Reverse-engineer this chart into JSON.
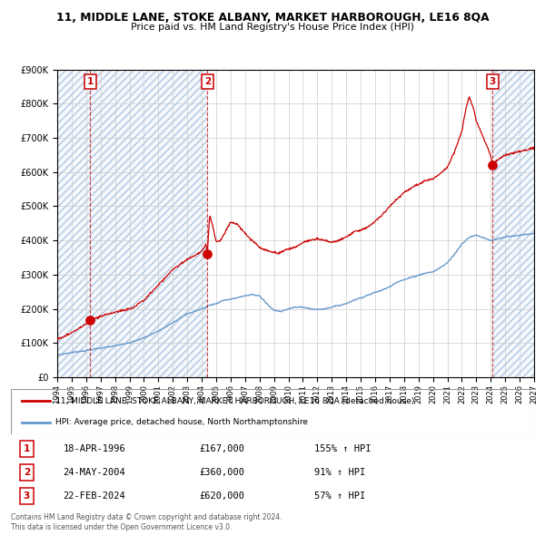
{
  "title1": "11, MIDDLE LANE, STOKE ALBANY, MARKET HARBOROUGH, LE16 8QA",
  "title2": "Price paid vs. HM Land Registry's House Price Index (HPI)",
  "legend_line1": "11, MIDDLE LANE, STOKE ALBANY, MARKET HARBOROUGH, LE16 8QA (detached house)",
  "legend_line2": "HPI: Average price, detached house, North Northamptonshire",
  "sale1_date": "18-APR-1996",
  "sale1_price": 167000,
  "sale1_label": "155% ↑ HPI",
  "sale1_x": 1996.29,
  "sale2_date": "24-MAY-2004",
  "sale2_price": 360000,
  "sale2_label": "91% ↑ HPI",
  "sale2_x": 2004.39,
  "sale3_date": "22-FEB-2024",
  "sale3_price": 620000,
  "sale3_label": "57% ↑ HPI",
  "sale3_x": 2024.13,
  "footer": "Contains HM Land Registry data © Crown copyright and database right 2024.\nThis data is licensed under the Open Government Licence v3.0.",
  "red_color": "#cc0000",
  "blue_color": "#6699cc",
  "ylim_min": 0,
  "ylim_max": 900000,
  "xlim_min": 1994,
  "xlim_max": 2027,
  "yticks": [
    0,
    100000,
    200000,
    300000,
    400000,
    500000,
    600000,
    700000,
    800000,
    900000
  ]
}
